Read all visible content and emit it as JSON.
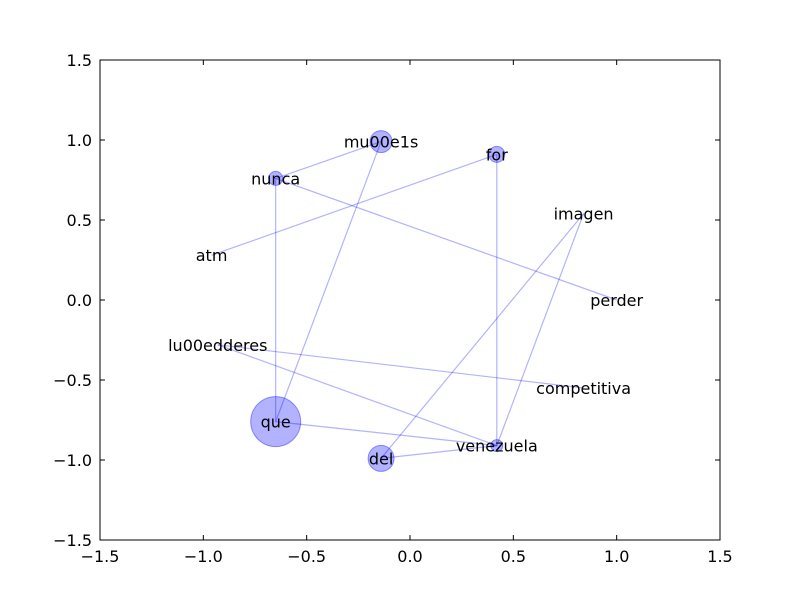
{
  "chart_data": {
    "type": "network",
    "title": "",
    "xlabel": "",
    "ylabel": "",
    "xlim": [
      -1.5,
      1.5
    ],
    "ylim": [
      -1.5,
      1.5
    ],
    "x_ticks": [
      -1.5,
      -1.0,
      -0.5,
      0.0,
      0.5,
      1.0,
      1.5
    ],
    "y_ticks": [
      -1.5,
      -1.0,
      -0.5,
      0.0,
      0.5,
      1.0,
      1.5
    ],
    "x_tick_labels": [
      "−1.5",
      "−1.0",
      "−0.5",
      "0.0",
      "0.5",
      "1.0",
      "1.5"
    ],
    "y_tick_labels": [
      "−1.5",
      "−1.0",
      "−0.5",
      "0.0",
      "0.5",
      "1.0",
      "1.5"
    ],
    "grid": false,
    "node_color": "#0000ff",
    "edge_color": "#0000ff",
    "nodes": [
      {
        "id": "que",
        "label": "que",
        "x": -0.65,
        "y": -0.76,
        "weight": 22
      },
      {
        "id": "venezuela",
        "label": "venezuela",
        "x": 0.42,
        "y": -0.91,
        "weight": 3
      },
      {
        "id": "del",
        "label": "del",
        "x": -0.14,
        "y": -0.99,
        "weight": 10
      },
      {
        "id": "lu00edderes",
        "label": "lu00edderes",
        "x": -0.93,
        "y": -0.28,
        "weight": 0
      },
      {
        "id": "competitiva",
        "label": "competitiva",
        "x": 0.84,
        "y": -0.55,
        "weight": 0
      },
      {
        "id": "perder",
        "label": "perder",
        "x": 1.0,
        "y": 0.0,
        "weight": 0
      },
      {
        "id": "imagen",
        "label": "imagen",
        "x": 0.84,
        "y": 0.54,
        "weight": 0
      },
      {
        "id": "for",
        "label": "for",
        "x": 0.42,
        "y": 0.91,
        "weight": 5
      },
      {
        "id": "mu00e1s",
        "label": "mu00e1s",
        "x": -0.14,
        "y": 0.99,
        "weight": 8
      },
      {
        "id": "nunca",
        "label": "nunca",
        "x": -0.65,
        "y": 0.76,
        "weight": 4
      },
      {
        "id": "atm",
        "label": "atm",
        "x": -0.96,
        "y": 0.28,
        "weight": 0
      }
    ],
    "edges": [
      [
        "que",
        "nunca"
      ],
      [
        "que",
        "mu00e1s"
      ],
      [
        "que",
        "venezuela"
      ],
      [
        "nunca",
        "mu00e1s"
      ],
      [
        "nunca",
        "perder"
      ],
      [
        "atm",
        "for"
      ],
      [
        "for",
        "venezuela"
      ],
      [
        "imagen",
        "del"
      ],
      [
        "imagen",
        "venezuela"
      ],
      [
        "lu00edderes",
        "competitiva"
      ],
      [
        "lu00edderes",
        "venezuela"
      ],
      [
        "del",
        "venezuela"
      ]
    ]
  }
}
